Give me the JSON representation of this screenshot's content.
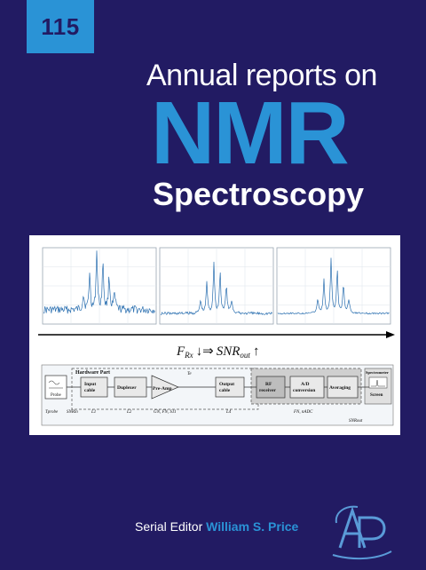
{
  "volume": "115",
  "title": {
    "line1": "Annual reports on",
    "line2": "NMR",
    "line3": "Spectroscopy"
  },
  "figure": {
    "spectra_count": 3,
    "equation": {
      "f_sym": "F",
      "f_sub": "Rx",
      "arrows": "↓⇒",
      "snr_sym": "SNR",
      "snr_sub": "out",
      "up": "↑"
    },
    "diagram": {
      "hardware_label": "Hardware Part",
      "probe": "Probe",
      "blocks": {
        "input_l1": "Input",
        "input_l2": "cable",
        "duplexer": "Duplexer",
        "preamp": "Pre-Amp",
        "output_l1": "Output",
        "output_l2": "cable",
        "rf_l1": "RF",
        "rf_l2": "receiver",
        "ad_l1": "A/D",
        "ad_l2": "conversion",
        "averaging": "Averaging",
        "screen": "Screen",
        "spectrometer": "Spectrometer"
      },
      "sub_labels": {
        "t_probe": "Tprobe",
        "snr_in": "SNRin",
        "l1": "L1",
        "l2": "L2",
        "g": "GN, FN, S11",
        "l4": "L4",
        "f_n": "FN, nADC",
        "snr_out": "SNRout",
        "t_e": "Te"
      }
    }
  },
  "serial_editor": {
    "label": "Serial Editor",
    "name": "William S. Price"
  },
  "colors": {
    "background": "#221b63",
    "accent": "#2a93d6",
    "spectrum": "#2a6fb0",
    "logo": "#5a9bd8"
  },
  "icons": [
    "publisher-logo"
  ]
}
